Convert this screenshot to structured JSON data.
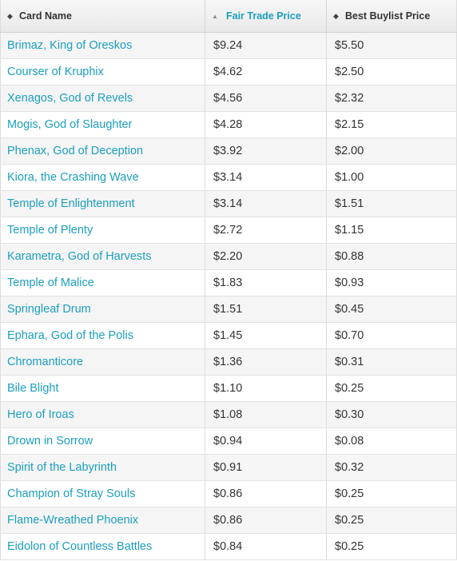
{
  "table": {
    "headers": [
      {
        "label": "Card Name",
        "sort_icon": "sort-both-icon",
        "active": false
      },
      {
        "label": "Fair Trade Price",
        "sort_icon": "sort-asc-icon",
        "active": true
      },
      {
        "label": "Best Buylist Price",
        "sort_icon": "sort-both-icon",
        "active": false
      }
    ],
    "colors": {
      "link": "#1b9fbf",
      "text": "#333333"
    },
    "rows": [
      {
        "name": "Brimaz, King of Oreskos",
        "fair_trade": "$9.24",
        "buylist": "$5.50"
      },
      {
        "name": "Courser of Kruphix",
        "fair_trade": "$4.62",
        "buylist": "$2.50"
      },
      {
        "name": "Xenagos, God of Revels",
        "fair_trade": "$4.56",
        "buylist": "$2.32"
      },
      {
        "name": "Mogis, God of Slaughter",
        "fair_trade": "$4.28",
        "buylist": "$2.15"
      },
      {
        "name": "Phenax, God of Deception",
        "fair_trade": "$3.92",
        "buylist": "$2.00"
      },
      {
        "name": "Kiora, the Crashing Wave",
        "fair_trade": "$3.14",
        "buylist": "$1.00"
      },
      {
        "name": "Temple of Enlightenment",
        "fair_trade": "$3.14",
        "buylist": "$1.51"
      },
      {
        "name": "Temple of Plenty",
        "fair_trade": "$2.72",
        "buylist": "$1.15"
      },
      {
        "name": "Karametra, God of Harvests",
        "fair_trade": "$2.20",
        "buylist": "$0.88"
      },
      {
        "name": "Temple of Malice",
        "fair_trade": "$1.83",
        "buylist": "$0.93"
      },
      {
        "name": "Springleaf Drum",
        "fair_trade": "$1.51",
        "buylist": "$0.45"
      },
      {
        "name": "Ephara, God of the Polis",
        "fair_trade": "$1.45",
        "buylist": "$0.70"
      },
      {
        "name": "Chromanticore",
        "fair_trade": "$1.36",
        "buylist": "$0.31"
      },
      {
        "name": "Bile Blight",
        "fair_trade": "$1.10",
        "buylist": "$0.25"
      },
      {
        "name": "Hero of Iroas",
        "fair_trade": "$1.08",
        "buylist": "$0.30"
      },
      {
        "name": "Drown in Sorrow",
        "fair_trade": "$0.94",
        "buylist": "$0.08"
      },
      {
        "name": "Spirit of the Labyrinth",
        "fair_trade": "$0.91",
        "buylist": "$0.32"
      },
      {
        "name": "Champion of Stray Souls",
        "fair_trade": "$0.86",
        "buylist": "$0.25"
      },
      {
        "name": "Flame-Wreathed Phoenix",
        "fair_trade": "$0.86",
        "buylist": "$0.25"
      },
      {
        "name": "Eidolon of Countless Battles",
        "fair_trade": "$0.84",
        "buylist": "$0.25"
      }
    ]
  }
}
